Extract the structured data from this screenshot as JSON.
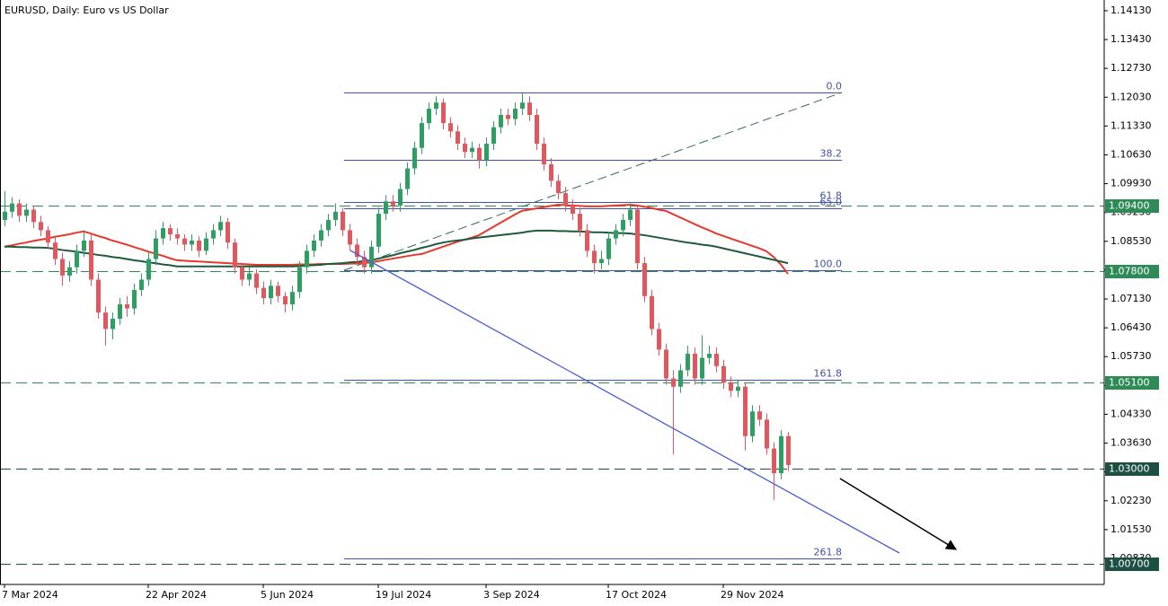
{
  "chart_data": {
    "type": "candlestick",
    "title": "EURUSD, Daily:  Euro vs US Dollar",
    "up_color": "#2e9e62",
    "down_color": "#e0585e",
    "categories": [
      "7 Mar 2024",
      null,
      null,
      null,
      null,
      null,
      null,
      null,
      null,
      null,
      null,
      null,
      null,
      null,
      null,
      null,
      null,
      null,
      null,
      null,
      "22 Apr 2024",
      null,
      null,
      null,
      null,
      null,
      null,
      null,
      null,
      null,
      null,
      null,
      null,
      null,
      null,
      null,
      "5 Jun 2024",
      null,
      null,
      null,
      null,
      null,
      null,
      null,
      null,
      null,
      null,
      null,
      null,
      null,
      null,
      null,
      "19 Jul 2024",
      null,
      null,
      null,
      null,
      null,
      null,
      null,
      null,
      null,
      null,
      null,
      null,
      null,
      null,
      "3 Sep 2024",
      null,
      null,
      null,
      null,
      null,
      null,
      null,
      null,
      null,
      null,
      null,
      null,
      null,
      null,
      null,
      null,
      "17 Oct 2024",
      null,
      null,
      null,
      null,
      null,
      null,
      null,
      null,
      null,
      null,
      null,
      null,
      null,
      null,
      null,
      "29 Nov 2024",
      null,
      null,
      null,
      null,
      null,
      null,
      null,
      null,
      null
    ],
    "ohlc": [
      [
        1.0905,
        1.0975,
        1.089,
        1.0925
      ],
      [
        1.0925,
        1.096,
        1.091,
        1.0945
      ],
      [
        1.0945,
        1.0955,
        1.09,
        1.0915
      ],
      [
        1.0915,
        1.0945,
        1.09,
        1.093
      ],
      [
        1.093,
        1.094,
        1.0885,
        1.09
      ],
      [
        1.09,
        1.0915,
        1.0865,
        1.088
      ],
      [
        1.088,
        1.089,
        1.0835,
        1.085
      ],
      [
        1.085,
        1.0865,
        1.0795,
        1.081
      ],
      [
        1.081,
        1.0825,
        1.0745,
        1.077
      ],
      [
        1.077,
        1.0805,
        1.0755,
        1.079
      ],
      [
        1.079,
        1.0845,
        1.0775,
        1.083
      ],
      [
        1.083,
        1.088,
        1.0815,
        1.0855
      ],
      [
        1.0855,
        1.087,
        1.0745,
        1.076
      ],
      [
        1.076,
        1.0775,
        1.0665,
        1.068
      ],
      [
        1.068,
        1.0695,
        1.06,
        1.064
      ],
      [
        1.064,
        1.068,
        1.0615,
        1.0665
      ],
      [
        1.0665,
        1.0715,
        1.065,
        1.07
      ],
      [
        1.07,
        1.072,
        1.067,
        1.069
      ],
      [
        1.069,
        1.075,
        1.0675,
        1.0735
      ],
      [
        1.0735,
        1.0775,
        1.072,
        1.076
      ],
      [
        1.076,
        1.0825,
        1.0745,
        1.081
      ],
      [
        1.081,
        1.088,
        1.0795,
        1.086
      ],
      [
        1.086,
        1.09,
        1.0845,
        1.0885
      ],
      [
        1.0885,
        1.0895,
        1.0855,
        1.087
      ],
      [
        1.087,
        1.0885,
        1.0845,
        1.086
      ],
      [
        1.086,
        1.087,
        1.083,
        1.0845
      ],
      [
        1.0845,
        1.087,
        1.083,
        1.0855
      ],
      [
        1.0855,
        1.0865,
        1.0815,
        1.083
      ],
      [
        1.083,
        1.0875,
        1.082,
        1.086
      ],
      [
        1.086,
        1.0895,
        1.0845,
        1.088
      ],
      [
        1.088,
        1.0915,
        1.0865,
        1.09
      ],
      [
        1.09,
        1.091,
        1.0835,
        1.085
      ],
      [
        1.085,
        1.086,
        1.0775,
        1.079
      ],
      [
        1.079,
        1.08,
        1.0745,
        1.076
      ],
      [
        1.076,
        1.079,
        1.0745,
        1.0775
      ],
      [
        1.0775,
        1.0785,
        1.0725,
        1.074
      ],
      [
        1.074,
        1.0755,
        1.07,
        1.0715
      ],
      [
        1.0715,
        1.076,
        1.07,
        1.0745
      ],
      [
        1.0745,
        1.0755,
        1.0705,
        1.072
      ],
      [
        1.072,
        1.073,
        1.068,
        1.07
      ],
      [
        1.07,
        1.0745,
        1.0685,
        1.073
      ],
      [
        1.073,
        1.0805,
        1.0715,
        1.079
      ],
      [
        1.079,
        1.0845,
        1.0775,
        1.083
      ],
      [
        1.083,
        1.087,
        1.0815,
        1.0855
      ],
      [
        1.0855,
        1.0895,
        1.084,
        1.088
      ],
      [
        1.088,
        1.092,
        1.0865,
        1.0905
      ],
      [
        1.0905,
        1.0945,
        1.089,
        1.0925
      ],
      [
        1.0925,
        1.0935,
        1.0865,
        1.088
      ],
      [
        1.088,
        1.0895,
        1.083,
        1.0845
      ],
      [
        1.0845,
        1.086,
        1.08,
        1.0815
      ],
      [
        1.0815,
        1.083,
        1.0775,
        1.079
      ],
      [
        1.079,
        1.0855,
        1.0775,
        1.084
      ],
      [
        1.084,
        1.0935,
        1.0825,
        1.092
      ],
      [
        1.092,
        1.0965,
        1.0905,
        1.095
      ],
      [
        1.095,
        1.0965,
        1.0925,
        1.094
      ],
      [
        1.094,
        1.0995,
        1.0925,
        1.098
      ],
      [
        1.098,
        1.1045,
        1.0965,
        1.103
      ],
      [
        1.103,
        1.1095,
        1.1015,
        1.108
      ],
      [
        1.108,
        1.1155,
        1.1065,
        1.114
      ],
      [
        1.114,
        1.119,
        1.1125,
        1.1175
      ],
      [
        1.1175,
        1.1205,
        1.116,
        1.119
      ],
      [
        1.119,
        1.12,
        1.1125,
        1.114
      ],
      [
        1.114,
        1.1155,
        1.1105,
        1.112
      ],
      [
        1.112,
        1.1135,
        1.1075,
        1.109
      ],
      [
        1.109,
        1.1105,
        1.1055,
        1.107
      ],
      [
        1.107,
        1.1095,
        1.1055,
        1.108
      ],
      [
        1.108,
        1.109,
        1.103,
        1.105
      ],
      [
        1.105,
        1.1105,
        1.1035,
        1.109
      ],
      [
        1.109,
        1.1145,
        1.1075,
        1.113
      ],
      [
        1.113,
        1.1175,
        1.1115,
        1.116
      ],
      [
        1.116,
        1.1175,
        1.1135,
        1.115
      ],
      [
        1.115,
        1.119,
        1.1135,
        1.1175
      ],
      [
        1.1175,
        1.1215,
        1.116,
        1.119
      ],
      [
        1.119,
        1.1205,
        1.1145,
        1.116
      ],
      [
        1.116,
        1.1175,
        1.1075,
        1.109
      ],
      [
        1.109,
        1.1105,
        1.1025,
        1.104
      ],
      [
        1.104,
        1.1055,
        1.0985,
        1.1
      ],
      [
        1.1,
        1.1015,
        1.0955,
        1.097
      ],
      [
        1.097,
        1.0985,
        1.0925,
        1.094
      ],
      [
        1.094,
        1.0955,
        1.0905,
        1.092
      ],
      [
        1.092,
        1.0935,
        1.0865,
        1.088
      ],
      [
        1.088,
        1.0895,
        1.0815,
        1.083
      ],
      [
        1.083,
        1.0845,
        1.0775,
        1.08
      ],
      [
        1.08,
        1.083,
        1.0785,
        1.081
      ],
      [
        1.081,
        1.0875,
        1.0795,
        1.086
      ],
      [
        1.086,
        1.0895,
        1.0845,
        1.088
      ],
      [
        1.088,
        1.092,
        1.0865,
        1.0905
      ],
      [
        1.0905,
        1.0945,
        1.089,
        1.093
      ],
      [
        1.093,
        1.094,
        1.0785,
        1.08
      ],
      [
        1.08,
        1.0815,
        1.0705,
        1.072
      ],
      [
        1.072,
        1.0735,
        1.0625,
        1.064
      ],
      [
        1.064,
        1.0655,
        1.0575,
        1.059
      ],
      [
        1.059,
        1.0605,
        1.0505,
        1.052
      ],
      [
        1.052,
        1.054,
        1.0335,
        1.05
      ],
      [
        1.05,
        1.0555,
        1.0485,
        1.054
      ],
      [
        1.054,
        1.06,
        1.0525,
        1.058
      ],
      [
        1.058,
        1.0595,
        1.0505,
        1.052
      ],
      [
        1.052,
        1.0625,
        1.0505,
        1.057
      ],
      [
        1.057,
        1.06,
        1.0555,
        1.058
      ],
      [
        1.058,
        1.0595,
        1.0535,
        1.055
      ],
      [
        1.055,
        1.0565,
        1.0495,
        1.051
      ],
      [
        1.051,
        1.0525,
        1.0475,
        1.049
      ],
      [
        1.049,
        1.0515,
        1.0475,
        1.05
      ],
      [
        1.05,
        1.051,
        1.0345,
        1.038
      ],
      [
        1.038,
        1.0455,
        1.0365,
        1.044
      ],
      [
        1.044,
        1.0455,
        1.0405,
        1.042
      ],
      [
        1.042,
        1.0435,
        1.0335,
        1.035
      ],
      [
        1.035,
        1.0365,
        1.0225,
        1.029
      ],
      [
        1.029,
        1.0395,
        1.0275,
        1.038
      ],
      [
        1.038,
        1.039,
        1.0295,
        1.031
      ]
    ],
    "moving_averages": [
      {
        "color": "#e8372c",
        "values": [
          1.084,
          1.0843,
          1.0847,
          1.085,
          1.0854,
          1.0857,
          1.086,
          1.0864,
          1.0867,
          1.087,
          1.0874,
          1.0877,
          1.0872,
          1.0866,
          1.0861,
          1.0855,
          1.085,
          1.0845,
          1.0839,
          1.0834,
          1.0828,
          1.0823,
          1.0818,
          1.0812,
          1.0807,
          1.0806,
          1.0805,
          1.0804,
          1.0803,
          1.0802,
          1.0801,
          1.08,
          1.0799,
          1.0798,
          1.0797,
          1.0796,
          1.0796,
          1.0796,
          1.0796,
          1.0796,
          1.0796,
          1.0797,
          1.0797,
          1.0797,
          1.0798,
          1.0798,
          1.0798,
          1.0798,
          1.0799,
          1.0799,
          1.08,
          1.0802,
          1.0805,
          1.0808,
          1.0811,
          1.0814,
          1.0817,
          1.082,
          1.0822,
          1.0828,
          1.0834,
          1.084,
          1.0846,
          1.0852,
          1.0857,
          1.0862,
          1.0868,
          1.0878,
          1.0888,
          1.0898,
          1.0908,
          1.0918,
          1.0927,
          1.093,
          1.0933,
          1.0936,
          1.0939,
          1.0942,
          1.0941,
          1.094,
          1.0939,
          1.0938,
          1.0938,
          1.0938,
          1.0939,
          1.094,
          1.0941,
          1.0942,
          1.094,
          1.0937,
          1.0934,
          1.093,
          1.0927,
          1.0919,
          1.0911,
          1.0903,
          1.0895,
          1.0887,
          1.088,
          1.0872,
          1.0866,
          1.086,
          1.0854,
          1.0848,
          1.0842,
          1.0836,
          1.0829,
          1.0815,
          1.0797,
          1.0774
        ]
      },
      {
        "color": "#1e5a3c",
        "values": [
          1.084,
          1.084,
          1.0839,
          1.0839,
          1.0838,
          1.0838,
          1.0837,
          1.0835,
          1.0832,
          1.083,
          1.0828,
          1.0825,
          1.0823,
          1.082,
          1.0818,
          1.0815,
          1.0813,
          1.081,
          1.0807,
          1.0805,
          1.0802,
          1.08,
          1.0797,
          1.0795,
          1.0792,
          1.0792,
          1.0792,
          1.0792,
          1.0792,
          1.0792,
          1.0792,
          1.0792,
          1.0792,
          1.0792,
          1.0792,
          1.0792,
          1.0792,
          1.0792,
          1.0792,
          1.0792,
          1.0792,
          1.0793,
          1.0794,
          1.0795,
          1.0796,
          1.0798,
          1.0799,
          1.08,
          1.0802,
          1.0803,
          1.0805,
          1.0807,
          1.0811,
          1.0815,
          1.0819,
          1.0824,
          1.0828,
          1.0832,
          1.0837,
          1.0841,
          1.0846,
          1.085,
          1.0853,
          1.0855,
          1.0857,
          1.086,
          1.0862,
          1.0864,
          1.0866,
          1.0868,
          1.087,
          1.0872,
          1.0874,
          1.0877,
          1.0879,
          1.0879,
          1.0879,
          1.0878,
          1.0878,
          1.0877,
          1.0877,
          1.0876,
          1.0875,
          1.0875,
          1.0874,
          1.0873,
          1.0873,
          1.0872,
          1.087,
          1.0868,
          1.0865,
          1.0862,
          1.0859,
          1.0856,
          1.0853,
          1.085,
          1.0848,
          1.0845,
          1.0843,
          1.084,
          1.0836,
          1.0832,
          1.0828,
          1.0824,
          1.082,
          1.0816,
          1.0812,
          1.0808,
          1.0804,
          1.08
        ]
      }
    ],
    "ylim": [
      1.0022,
      1.1439
    ],
    "yticks": [
      {
        "value": 1.1413,
        "label": "1.14130"
      },
      {
        "value": 1.1343,
        "label": "1.13430"
      },
      {
        "value": 1.1273,
        "label": "1.12730"
      },
      {
        "value": 1.1203,
        "label": "1.12030"
      },
      {
        "value": 1.1133,
        "label": "1.11330"
      },
      {
        "value": 1.1063,
        "label": "1.10630"
      },
      {
        "value": 1.0993,
        "label": "1.09930"
      },
      {
        "value": 1.0923,
        "label": "1.09230"
      },
      {
        "value": 1.0853,
        "label": "1.08530"
      },
      {
        "value": 1.0783,
        "label": "1.07830"
      },
      {
        "value": 1.0713,
        "label": "1.07130"
      },
      {
        "value": 1.0643,
        "label": "1.06430"
      },
      {
        "value": 1.0573,
        "label": "1.05730"
      },
      {
        "value": 1.0503,
        "label": "1.05030"
      },
      {
        "value": 1.0433,
        "label": "1.04330"
      },
      {
        "value": 1.0363,
        "label": "1.03630"
      },
      {
        "value": 1.0293,
        "label": "1.02930"
      },
      {
        "value": 1.0223,
        "label": "1.02230"
      },
      {
        "value": 1.0153,
        "label": "1.01530"
      },
      {
        "value": 1.0083,
        "label": "1.00830"
      }
    ],
    "levels": [
      {
        "value": 1.094,
        "label": "1.09400",
        "color": "#2e8b57"
      },
      {
        "value": 1.078,
        "label": "1.07800",
        "color": "#2e8b57"
      },
      {
        "value": 1.051,
        "label": "1.05100",
        "color": "#2e8b57"
      },
      {
        "value": 1.03,
        "label": "1.03000",
        "color": "#1d4f45"
      },
      {
        "value": 1.007,
        "label": "1.00700",
        "color": "#1d4f45"
      }
    ],
    "fibonacci": {
      "price_0": 1.1215,
      "price_100": 1.0783,
      "color": "#4250a8",
      "levels": [
        {
          "value": 0,
          "label": "0.0"
        },
        38.2,
        61.8,
        {
          "value": 65,
          "label": "65.0"
        },
        {
          "value": 100,
          "label": "100.0"
        },
        161.8,
        261.8
      ]
    }
  }
}
